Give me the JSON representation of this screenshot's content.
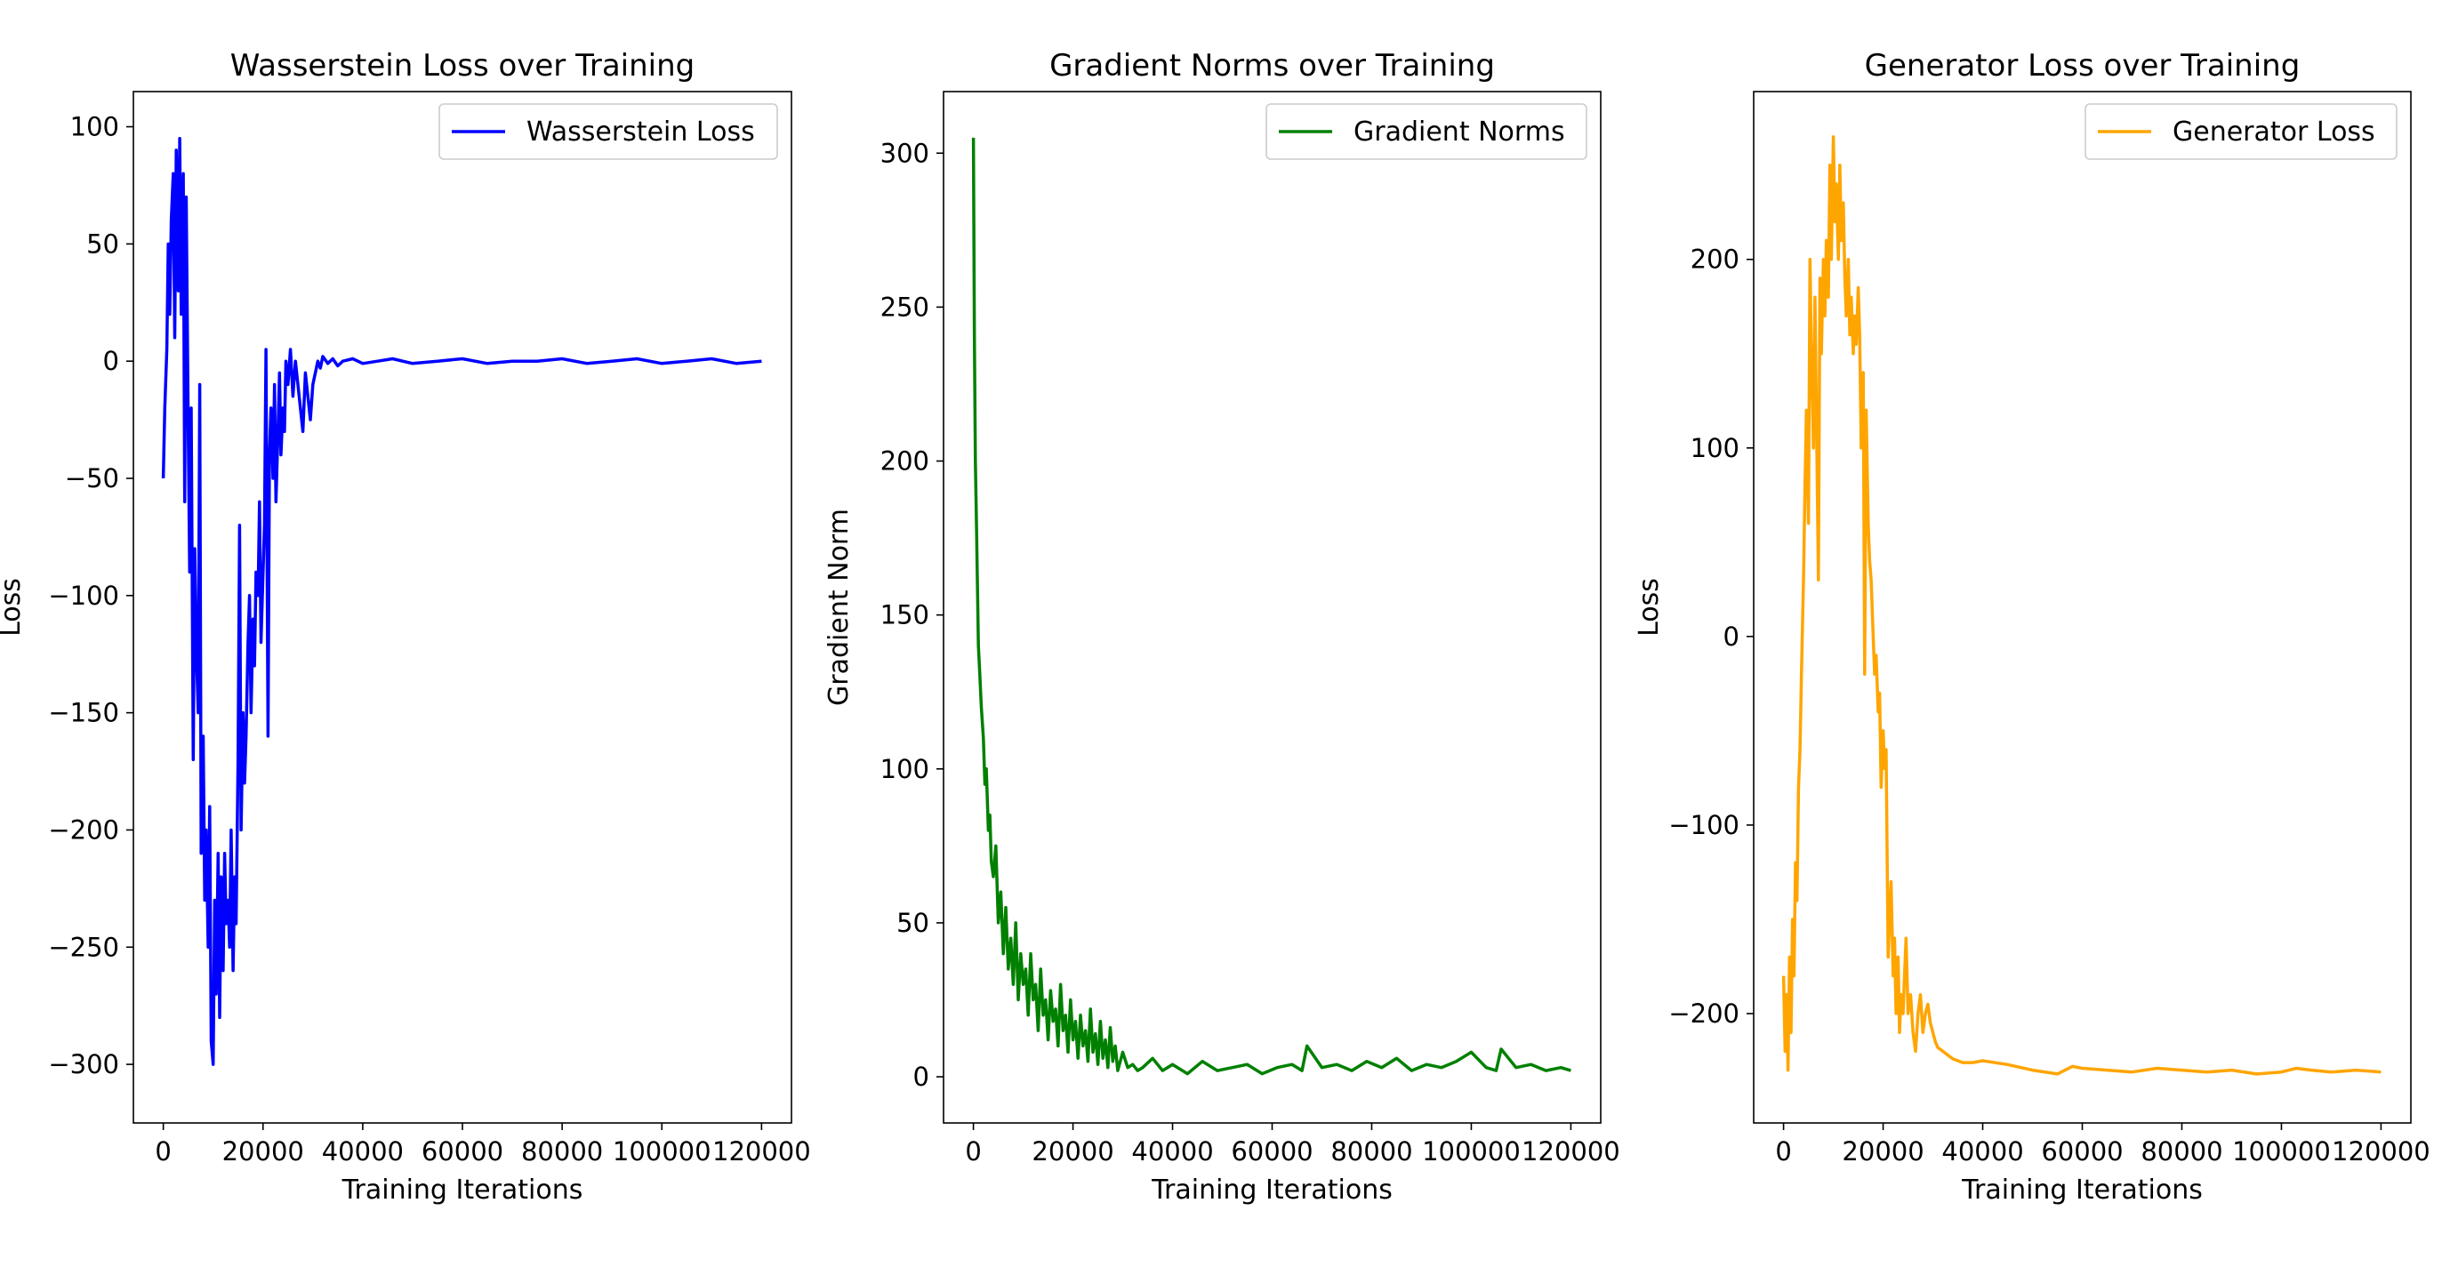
{
  "chart_data": [
    {
      "type": "line",
      "title": "Wasserstein Loss over Training",
      "xlabel": "Training Iterations",
      "ylabel": "Loss",
      "xlim": [
        -6000,
        126000
      ],
      "ylim": [
        -325,
        115
      ],
      "xticks": [
        0,
        20000,
        40000,
        60000,
        80000,
        100000,
        120000
      ],
      "yticks": [
        -300,
        -250,
        -200,
        -150,
        -100,
        -50,
        0,
        50,
        100
      ],
      "grid": false,
      "legend_position": "top-right",
      "series": [
        {
          "name": "Wasserstein Loss",
          "color": "#0000ff",
          "x": [
            0,
            300,
            700,
            1000,
            1300,
            1600,
            2000,
            2300,
            2600,
            3000,
            3300,
            3600,
            4000,
            4300,
            4600,
            5000,
            5300,
            5600,
            6000,
            6300,
            6600,
            7000,
            7300,
            7600,
            8000,
            8300,
            8600,
            9000,
            9300,
            9600,
            10000,
            10300,
            10600,
            11000,
            11300,
            11600,
            12000,
            12300,
            12600,
            13000,
            13300,
            13600,
            14000,
            14300,
            14600,
            15000,
            15300,
            15600,
            16000,
            16300,
            16600,
            17000,
            17300,
            17600,
            18000,
            18300,
            18600,
            19000,
            19300,
            19600,
            20000,
            20300,
            20600,
            21000,
            21300,
            21600,
            22000,
            22300,
            22600,
            23000,
            23300,
            23600,
            24000,
            24300,
            24600,
            25000,
            25500,
            26000,
            26500,
            27000,
            27500,
            28000,
            28500,
            29000,
            29500,
            30000,
            30500,
            31000,
            31500,
            32000,
            33000,
            34000,
            35000,
            36000,
            38000,
            40000,
            43000,
            46000,
            50000,
            55000,
            60000,
            65000,
            70000,
            75000,
            80000,
            85000,
            90000,
            95000,
            100000,
            105000,
            110000,
            115000,
            120000
          ],
          "y": [
            -50,
            -20,
            5,
            50,
            20,
            60,
            80,
            10,
            90,
            30,
            95,
            20,
            80,
            -60,
            70,
            -30,
            -90,
            -20,
            -170,
            -80,
            -120,
            -150,
            -10,
            -210,
            -160,
            -230,
            -200,
            -250,
            -190,
            -290,
            -300,
            -230,
            -270,
            -210,
            -280,
            -220,
            -260,
            -210,
            -240,
            -230,
            -250,
            -200,
            -260,
            -220,
            -240,
            -170,
            -70,
            -200,
            -150,
            -180,
            -160,
            -120,
            -100,
            -150,
            -110,
            -130,
            -90,
            -100,
            -60,
            -120,
            -90,
            -70,
            5,
            -160,
            -40,
            -20,
            -50,
            -10,
            -60,
            -30,
            -5,
            -40,
            -20,
            -30,
            0,
            -10,
            5,
            -15,
            0,
            -10,
            -20,
            -30,
            -5,
            -15,
            -25,
            -10,
            -5,
            0,
            -3,
            2,
            -1,
            1,
            -2,
            0,
            1,
            -1,
            0,
            1,
            -1,
            0,
            1,
            -1,
            0,
            0,
            1,
            -1,
            0,
            1,
            -1,
            0,
            1,
            -1,
            0
          ]
        }
      ]
    },
    {
      "type": "line",
      "title": "Gradient Norms over Training",
      "xlabel": "Training Iterations",
      "ylabel": "Gradient Norm",
      "xlim": [
        -6000,
        126000
      ],
      "ylim": [
        -15,
        320
      ],
      "xticks": [
        0,
        20000,
        40000,
        60000,
        80000,
        100000,
        120000
      ],
      "yticks": [
        0,
        50,
        100,
        150,
        200,
        250,
        300
      ],
      "grid": false,
      "legend_position": "top-right",
      "series": [
        {
          "name": "Gradient Norms",
          "color": "#008000",
          "x": [
            0,
            200,
            400,
            600,
            800,
            1000,
            1300,
            1600,
            2000,
            2300,
            2600,
            3000,
            3300,
            3600,
            4000,
            4500,
            5000,
            5500,
            6000,
            6500,
            7000,
            7500,
            8000,
            8500,
            9000,
            9500,
            10000,
            10500,
            11000,
            11500,
            12000,
            12500,
            13000,
            13500,
            14000,
            14500,
            15000,
            15500,
            16000,
            16500,
            17000,
            17500,
            18000,
            18500,
            19000,
            19500,
            20000,
            20500,
            21000,
            21500,
            22000,
            22500,
            23000,
            23500,
            24000,
            24500,
            25000,
            25500,
            26000,
            26500,
            27000,
            27500,
            28000,
            28500,
            29000,
            30000,
            31000,
            32000,
            33000,
            34000,
            36000,
            38000,
            40000,
            43000,
            46000,
            49000,
            52000,
            55000,
            58000,
            61000,
            64000,
            66000,
            67000,
            70000,
            73000,
            76000,
            79000,
            82000,
            85000,
            88000,
            91000,
            94000,
            97000,
            100000,
            103000,
            105000,
            106000,
            109000,
            112000,
            115000,
            118000,
            120000
          ],
          "y": [
            305,
            240,
            200,
            180,
            160,
            140,
            130,
            120,
            110,
            95,
            100,
            80,
            85,
            70,
            65,
            75,
            50,
            60,
            40,
            55,
            35,
            45,
            30,
            50,
            25,
            40,
            30,
            35,
            20,
            40,
            25,
            30,
            15,
            35,
            20,
            25,
            12,
            28,
            18,
            22,
            10,
            30,
            15,
            20,
            8,
            25,
            12,
            18,
            6,
            20,
            10,
            15,
            5,
            22,
            8,
            14,
            4,
            18,
            6,
            12,
            3,
            16,
            5,
            10,
            2,
            8,
            3,
            4,
            2,
            3,
            6,
            2,
            4,
            1,
            5,
            2,
            3,
            4,
            1,
            3,
            4,
            2,
            10,
            3,
            4,
            2,
            5,
            3,
            6,
            2,
            4,
            3,
            5,
            8,
            3,
            2,
            9,
            3,
            4,
            2,
            3,
            2
          ]
        }
      ]
    },
    {
      "type": "line",
      "title": "Generator Loss over Training",
      "xlabel": "Training Iterations",
      "ylabel": "Loss",
      "xlim": [
        -6000,
        126000
      ],
      "ylim": [
        -258,
        289
      ],
      "xticks": [
        0,
        20000,
        40000,
        60000,
        80000,
        100000,
        120000
      ],
      "yticks": [
        -200,
        -100,
        0,
        100,
        200
      ],
      "grid": false,
      "legend_position": "top-right",
      "series": [
        {
          "name": "Generator Loss",
          "color": "#ffa500",
          "x": [
            0,
            300,
            600,
            900,
            1200,
            1500,
            1800,
            2100,
            2400,
            2700,
            3000,
            3300,
            3600,
            4000,
            4300,
            4600,
            5000,
            5300,
            5600,
            6000,
            6300,
            6600,
            7000,
            7300,
            7600,
            8000,
            8300,
            8600,
            9000,
            9300,
            9600,
            10000,
            10300,
            10600,
            11000,
            11300,
            11600,
            12000,
            12300,
            12600,
            13000,
            13300,
            13600,
            14000,
            14300,
            14600,
            15000,
            15300,
            15600,
            16000,
            16300,
            16600,
            17000,
            17300,
            17600,
            18000,
            18300,
            18600,
            19000,
            19300,
            19600,
            20000,
            20300,
            20600,
            21000,
            21300,
            21600,
            22000,
            22300,
            22600,
            23000,
            23300,
            23600,
            24000,
            24300,
            24600,
            25000,
            25500,
            26000,
            26500,
            27000,
            27500,
            28000,
            28500,
            29000,
            29500,
            30000,
            30500,
            31000,
            32000,
            33000,
            34000,
            36000,
            38000,
            40000,
            45000,
            50000,
            55000,
            58000,
            60000,
            65000,
            70000,
            75000,
            80000,
            85000,
            90000,
            95000,
            100000,
            103000,
            106000,
            110000,
            115000,
            120000
          ],
          "y": [
            -180,
            -220,
            -190,
            -230,
            -170,
            -210,
            -150,
            -180,
            -120,
            -140,
            -80,
            -60,
            -20,
            30,
            80,
            120,
            60,
            200,
            150,
            100,
            180,
            120,
            30,
            190,
            150,
            200,
            170,
            210,
            180,
            250,
            200,
            265,
            220,
            240,
            200,
            250,
            210,
            230,
            190,
            170,
            200,
            160,
            180,
            150,
            170,
            155,
            185,
            160,
            100,
            140,
            -20,
            120,
            60,
            40,
            30,
            0,
            -20,
            -10,
            -40,
            -30,
            -80,
            -50,
            -70,
            -60,
            -170,
            -150,
            -130,
            -180,
            -160,
            -200,
            -170,
            -210,
            -190,
            -200,
            -180,
            -160,
            -200,
            -190,
            -210,
            -220,
            -200,
            -190,
            -210,
            -200,
            -195,
            -205,
            -210,
            -215,
            -218,
            -220,
            -222,
            -224,
            -226,
            -226,
            -225,
            -227,
            -230,
            -232,
            -228,
            -229,
            -230,
            -231,
            -229,
            -230,
            -231,
            -230,
            -232,
            -231,
            -229,
            -230,
            -231,
            -230,
            -231
          ]
        }
      ]
    }
  ]
}
